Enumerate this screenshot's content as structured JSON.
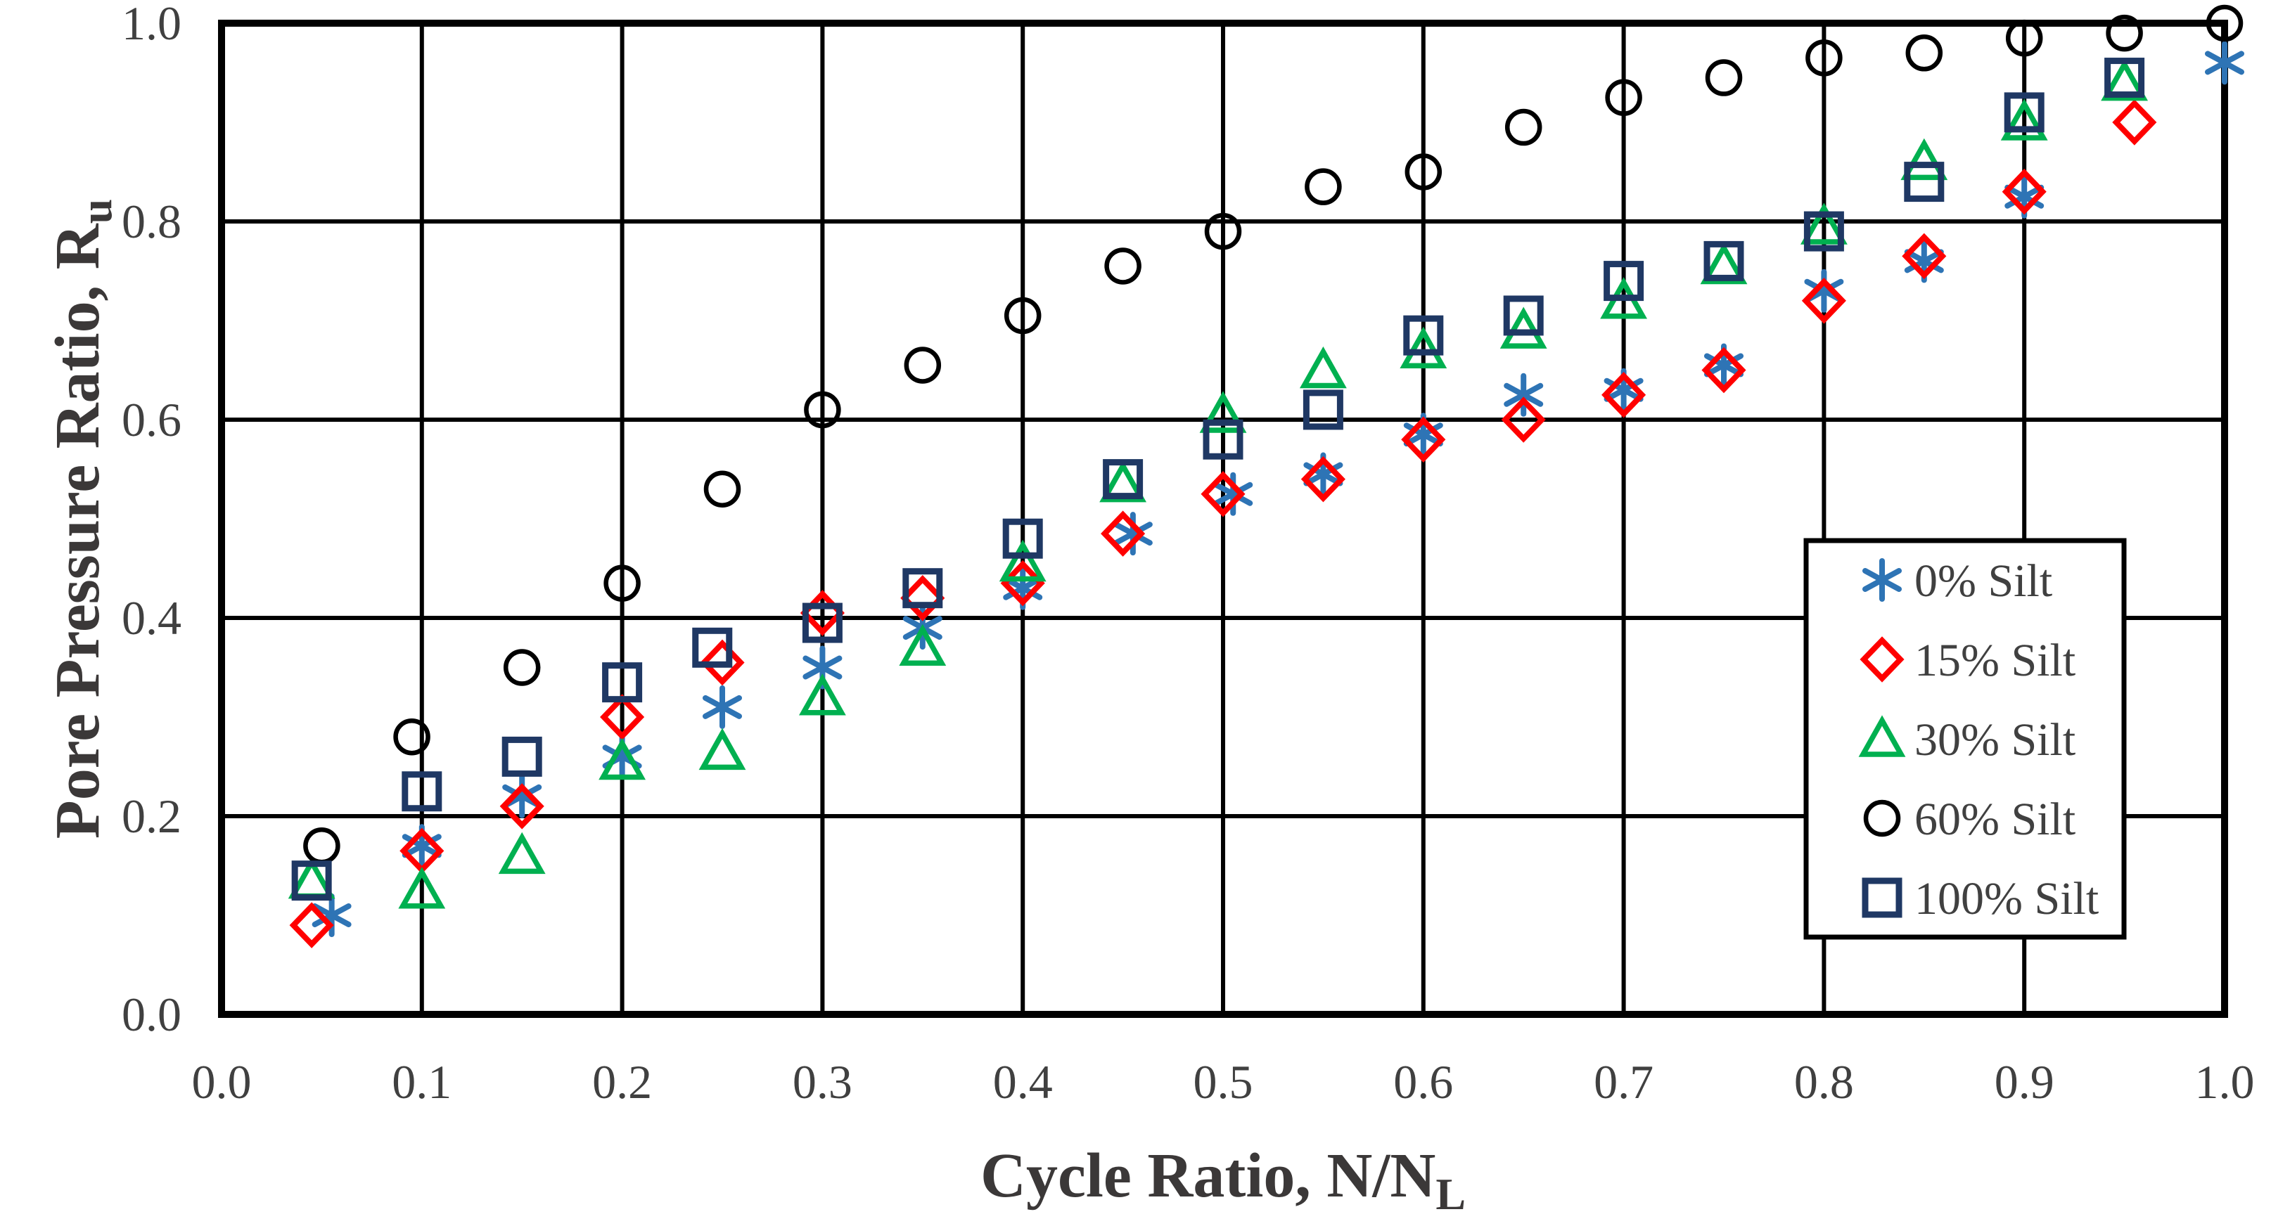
{
  "figure": {
    "background": "#ffffff",
    "frame_color": "#000000",
    "axis_text_color": "#404040",
    "title_text_color": "#3b3838"
  },
  "chart_data": {
    "type": "scatter",
    "title": "",
    "xlabel": {
      "text": "Cycle Ratio, N/N",
      "sub": "L"
    },
    "ylabel": {
      "text": "Pore Pressure Ratio, R",
      "sub": "u"
    },
    "xlim": [
      0.0,
      1.0
    ],
    "ylim": [
      0.0,
      1.0
    ],
    "xticks": [
      "0.0",
      "0.1",
      "0.2",
      "0.3",
      "0.4",
      "0.5",
      "0.6",
      "0.7",
      "0.8",
      "0.9",
      "1.0"
    ],
    "yticks": [
      "0.0",
      "0.2",
      "0.4",
      "0.6",
      "0.8",
      "1.0"
    ],
    "grid": {
      "x_step": 0.1,
      "y_step": 0.2,
      "color": "#000000",
      "visible": true
    },
    "legend": {
      "position": "right-middle",
      "border_color": "#000000",
      "fill": "#ffffff"
    },
    "series": [
      {
        "name": "0% Silt",
        "marker": "asterisk",
        "color": "#2E74B5",
        "points": [
          [
            0.055,
            0.1
          ],
          [
            0.1,
            0.17
          ],
          [
            0.15,
            0.22
          ],
          [
            0.2,
            0.26
          ],
          [
            0.25,
            0.31
          ],
          [
            0.3,
            0.35
          ],
          [
            0.35,
            0.39
          ],
          [
            0.4,
            0.43
          ],
          [
            0.455,
            0.485
          ],
          [
            0.505,
            0.525
          ],
          [
            0.55,
            0.545
          ],
          [
            0.6,
            0.585
          ],
          [
            0.65,
            0.625
          ],
          [
            0.7,
            0.63
          ],
          [
            0.75,
            0.655
          ],
          [
            0.8,
            0.73
          ],
          [
            0.85,
            0.76
          ],
          [
            0.9,
            0.825
          ],
          [
            1.0,
            0.96
          ]
        ]
      },
      {
        "name": "15% Silt",
        "marker": "diamond",
        "color": "#FF0000",
        "points": [
          [
            0.045,
            0.09
          ],
          [
            0.1,
            0.165
          ],
          [
            0.15,
            0.21
          ],
          [
            0.2,
            0.3
          ],
          [
            0.25,
            0.355
          ],
          [
            0.3,
            0.405
          ],
          [
            0.35,
            0.42
          ],
          [
            0.4,
            0.435
          ],
          [
            0.45,
            0.485
          ],
          [
            0.5,
            0.525
          ],
          [
            0.55,
            0.54
          ],
          [
            0.6,
            0.58
          ],
          [
            0.65,
            0.6
          ],
          [
            0.7,
            0.625
          ],
          [
            0.75,
            0.65
          ],
          [
            0.8,
            0.72
          ],
          [
            0.85,
            0.765
          ],
          [
            0.9,
            0.83
          ],
          [
            0.955,
            0.9
          ]
        ]
      },
      {
        "name": "30% Silt",
        "marker": "triangle",
        "color": "#00B050",
        "points": [
          [
            0.045,
            0.135
          ],
          [
            0.1,
            0.125
          ],
          [
            0.15,
            0.16
          ],
          [
            0.2,
            0.255
          ],
          [
            0.25,
            0.265
          ],
          [
            0.3,
            0.32
          ],
          [
            0.35,
            0.37
          ],
          [
            0.4,
            0.455
          ],
          [
            0.45,
            0.535
          ],
          [
            0.5,
            0.605
          ],
          [
            0.55,
            0.65
          ],
          [
            0.6,
            0.67
          ],
          [
            0.65,
            0.69
          ],
          [
            0.7,
            0.72
          ],
          [
            0.75,
            0.755
          ],
          [
            0.8,
            0.795
          ],
          [
            0.85,
            0.86
          ],
          [
            0.9,
            0.9
          ],
          [
            0.95,
            0.94
          ]
        ]
      },
      {
        "name": "60% Silt",
        "marker": "circle",
        "color": "#000000",
        "points": [
          [
            0.05,
            0.17
          ],
          [
            0.095,
            0.28
          ],
          [
            0.15,
            0.35
          ],
          [
            0.2,
            0.435
          ],
          [
            0.25,
            0.53
          ],
          [
            0.3,
            0.61
          ],
          [
            0.35,
            0.655
          ],
          [
            0.4,
            0.705
          ],
          [
            0.45,
            0.755
          ],
          [
            0.5,
            0.79
          ],
          [
            0.55,
            0.835
          ],
          [
            0.6,
            0.85
          ],
          [
            0.65,
            0.895
          ],
          [
            0.7,
            0.925
          ],
          [
            0.75,
            0.945
          ],
          [
            0.8,
            0.965
          ],
          [
            0.85,
            0.97
          ],
          [
            0.9,
            0.985
          ],
          [
            0.95,
            0.99
          ],
          [
            1.0,
            1.0
          ]
        ]
      },
      {
        "name": "100% Silt",
        "marker": "square",
        "color": "#1F3864",
        "points": [
          [
            0.045,
            0.135
          ],
          [
            0.1,
            0.225
          ],
          [
            0.15,
            0.26
          ],
          [
            0.2,
            0.335
          ],
          [
            0.245,
            0.37
          ],
          [
            0.3,
            0.395
          ],
          [
            0.35,
            0.43
          ],
          [
            0.4,
            0.48
          ],
          [
            0.45,
            0.54
          ],
          [
            0.5,
            0.58
          ],
          [
            0.55,
            0.61
          ],
          [
            0.6,
            0.685
          ],
          [
            0.65,
            0.705
          ],
          [
            0.7,
            0.74
          ],
          [
            0.75,
            0.76
          ],
          [
            0.8,
            0.79
          ],
          [
            0.85,
            0.84
          ],
          [
            0.9,
            0.91
          ],
          [
            0.95,
            0.945
          ]
        ]
      }
    ]
  }
}
